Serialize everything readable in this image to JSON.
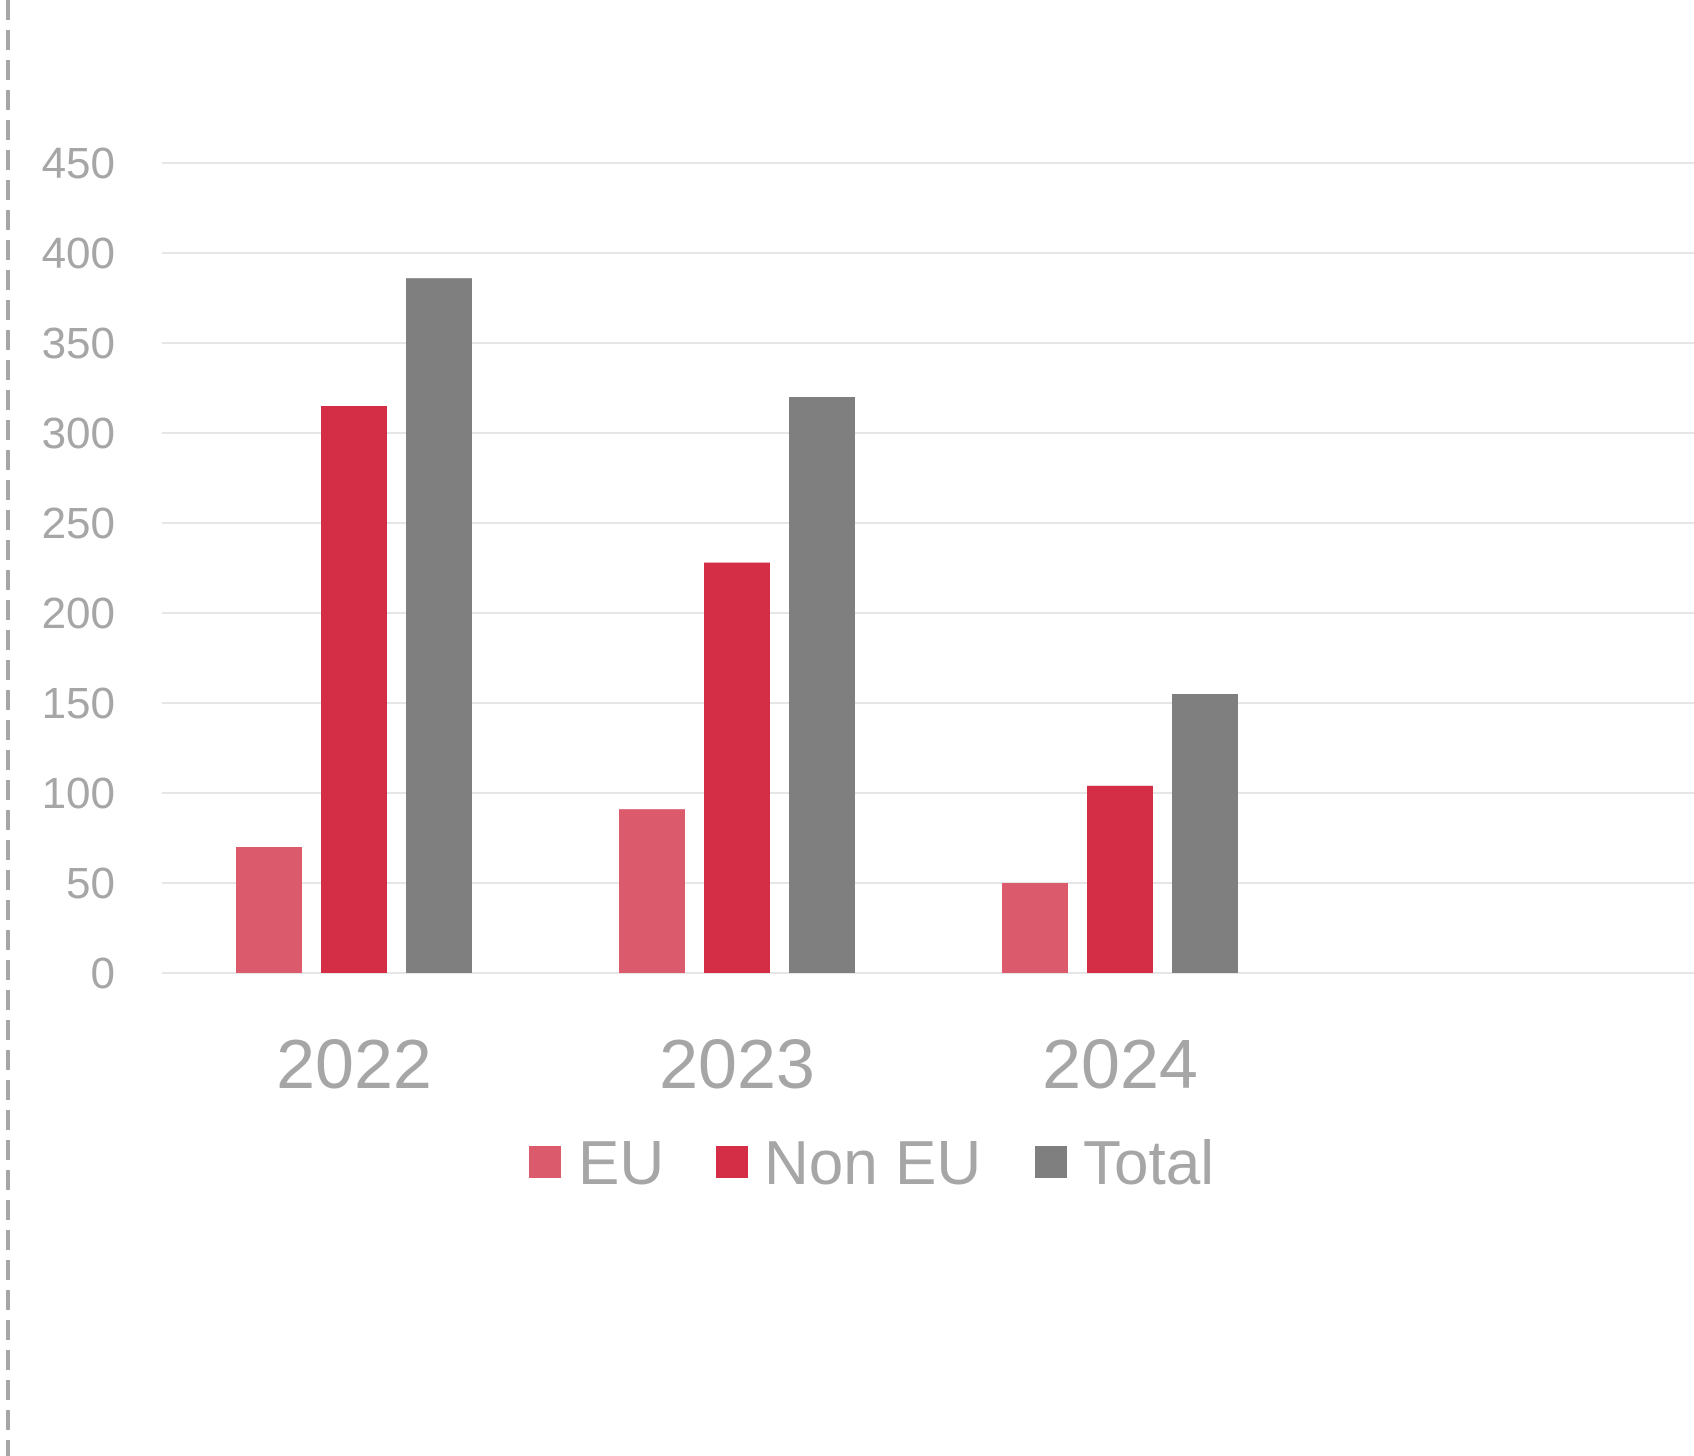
{
  "chart_data": {
    "type": "bar",
    "categories": [
      "2022",
      "2023",
      "2024"
    ],
    "series": [
      {
        "name": "EU",
        "values": [
          70,
          91,
          50
        ],
        "color": "#db5a6b"
      },
      {
        "name": "Non EU",
        "values": [
          315,
          228,
          104
        ],
        "color": "#d42e46"
      },
      {
        "name": "Total",
        "values": [
          386,
          320,
          155
        ],
        "color": "#7f7f7f"
      }
    ],
    "yticks": [
      "0",
      "50",
      "100",
      "150",
      "200",
      "250",
      "300",
      "350",
      "400",
      "450"
    ],
    "ylim": [
      0,
      450
    ],
    "grid": true,
    "legend_position": "bottom",
    "title": "",
    "xlabel": "",
    "ylabel": ""
  },
  "colors": {
    "tick_text": "#a6a6a6",
    "gridline": "#e6e6e6",
    "left_border": "#a6a6a6"
  }
}
